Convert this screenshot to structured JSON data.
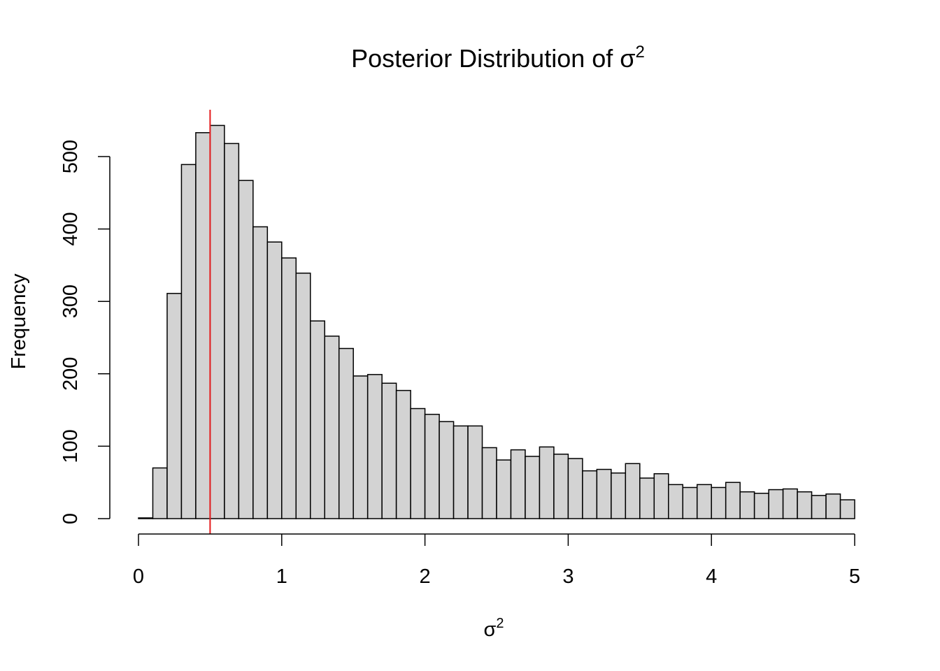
{
  "chart_data": {
    "type": "bar",
    "title": "Posterior Distribution of σ",
    "title_superscript": "2",
    "xlabel": "σ",
    "xlabel_superscript": "2",
    "ylabel": "Frequency",
    "xlim": [
      0,
      5
    ],
    "ylim": [
      0,
      540
    ],
    "x_ticks": [
      "0",
      "1",
      "2",
      "3",
      "4",
      "5"
    ],
    "y_ticks": [
      "0",
      "100",
      "200",
      "300",
      "400",
      "500"
    ],
    "bin_width": 0.1,
    "bin_start": 0,
    "values": [
      1,
      70,
      311,
      489,
      533,
      543,
      518,
      467,
      403,
      382,
      360,
      339,
      273,
      252,
      235,
      197,
      199,
      187,
      177,
      152,
      144,
      134,
      128,
      128,
      98,
      81,
      95,
      86,
      99,
      89,
      83,
      66,
      68,
      63,
      76,
      56,
      62,
      47,
      43,
      47,
      43,
      50,
      37,
      35,
      40,
      41,
      37,
      32,
      34,
      26
    ],
    "reference_line": {
      "x": 0.5,
      "color": "#e41a1c"
    },
    "bar_fill": "#d3d3d3",
    "bar_stroke": "#000000",
    "grid": false,
    "legend": "none"
  }
}
